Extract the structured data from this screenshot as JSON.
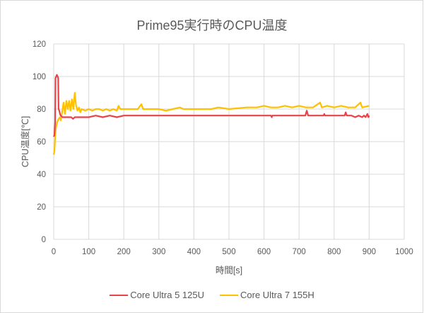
{
  "chart_data": {
    "type": "line",
    "title": "Prime95実行時のCPU温度",
    "xlabel": "時間[s]",
    "ylabel": "CPU温度[℃]",
    "xlim": [
      0,
      1000
    ],
    "ylim": [
      0,
      120
    ],
    "xticks": [
      0,
      100,
      200,
      300,
      400,
      500,
      600,
      700,
      800,
      900,
      1000
    ],
    "yticks": [
      0,
      20,
      40,
      60,
      80,
      100,
      120
    ],
    "grid": true,
    "legend_position": "bottom",
    "series": [
      {
        "name": "Core Ultra 5 125U",
        "color": "#e8424a",
        "points": [
          [
            0,
            63
          ],
          [
            2,
            64
          ],
          [
            4,
            72
          ],
          [
            5,
            99
          ],
          [
            7,
            100
          ],
          [
            9,
            101
          ],
          [
            11,
            100
          ],
          [
            13,
            99
          ],
          [
            14,
            80
          ],
          [
            16,
            79
          ],
          [
            18,
            77
          ],
          [
            20,
            76
          ],
          [
            25,
            75
          ],
          [
            40,
            75
          ],
          [
            50,
            75
          ],
          [
            55,
            74
          ],
          [
            60,
            75
          ],
          [
            70,
            75
          ],
          [
            80,
            75
          ],
          [
            100,
            75
          ],
          [
            120,
            76
          ],
          [
            140,
            75
          ],
          [
            160,
            76
          ],
          [
            180,
            75
          ],
          [
            200,
            76
          ],
          [
            300,
            76
          ],
          [
            400,
            76
          ],
          [
            500,
            76
          ],
          [
            600,
            76
          ],
          [
            620,
            76
          ],
          [
            622,
            75
          ],
          [
            624,
            76
          ],
          [
            700,
            76
          ],
          [
            718,
            76
          ],
          [
            722,
            79
          ],
          [
            726,
            76
          ],
          [
            730,
            76
          ],
          [
            770,
            76
          ],
          [
            772,
            77
          ],
          [
            774,
            76
          ],
          [
            830,
            76
          ],
          [
            833,
            78
          ],
          [
            836,
            76
          ],
          [
            850,
            76
          ],
          [
            860,
            75
          ],
          [
            870,
            76
          ],
          [
            880,
            75
          ],
          [
            885,
            76
          ],
          [
            890,
            75
          ],
          [
            895,
            77
          ],
          [
            898,
            75
          ],
          [
            900,
            76
          ]
        ]
      },
      {
        "name": "Core Ultra 7 155H",
        "color": "#ffc000",
        "points": [
          [
            0,
            52
          ],
          [
            2,
            54
          ],
          [
            4,
            62
          ],
          [
            6,
            68
          ],
          [
            10,
            72
          ],
          [
            14,
            74
          ],
          [
            18,
            75
          ],
          [
            20,
            73
          ],
          [
            24,
            78
          ],
          [
            28,
            84
          ],
          [
            32,
            77
          ],
          [
            36,
            85
          ],
          [
            40,
            80
          ],
          [
            44,
            85
          ],
          [
            48,
            79
          ],
          [
            52,
            86
          ],
          [
            56,
            80
          ],
          [
            60,
            90
          ],
          [
            64,
            82
          ],
          [
            68,
            79
          ],
          [
            72,
            81
          ],
          [
            76,
            78
          ],
          [
            80,
            80
          ],
          [
            90,
            79
          ],
          [
            100,
            80
          ],
          [
            110,
            79
          ],
          [
            120,
            80
          ],
          [
            130,
            80
          ],
          [
            140,
            79
          ],
          [
            150,
            80
          ],
          [
            160,
            79
          ],
          [
            170,
            80
          ],
          [
            180,
            79
          ],
          [
            185,
            82
          ],
          [
            190,
            80
          ],
          [
            200,
            80
          ],
          [
            220,
            80
          ],
          [
            240,
            80
          ],
          [
            250,
            83
          ],
          [
            255,
            80
          ],
          [
            280,
            80
          ],
          [
            300,
            80
          ],
          [
            320,
            79
          ],
          [
            340,
            80
          ],
          [
            360,
            81
          ],
          [
            370,
            80
          ],
          [
            400,
            80
          ],
          [
            450,
            80
          ],
          [
            470,
            81
          ],
          [
            500,
            80
          ],
          [
            550,
            81
          ],
          [
            580,
            81
          ],
          [
            600,
            82
          ],
          [
            620,
            81
          ],
          [
            640,
            81
          ],
          [
            660,
            82
          ],
          [
            680,
            81
          ],
          [
            700,
            82
          ],
          [
            720,
            81
          ],
          [
            740,
            81
          ],
          [
            760,
            84
          ],
          [
            765,
            81
          ],
          [
            780,
            82
          ],
          [
            800,
            81
          ],
          [
            820,
            82
          ],
          [
            840,
            81
          ],
          [
            860,
            81
          ],
          [
            875,
            84
          ],
          [
            880,
            81
          ],
          [
            900,
            82
          ]
        ]
      }
    ]
  },
  "legend": {
    "items": [
      {
        "label": "Core Ultra 5 125U",
        "color": "#e8424a"
      },
      {
        "label": "Core Ultra 7 155H",
        "color": "#ffc000"
      }
    ]
  }
}
